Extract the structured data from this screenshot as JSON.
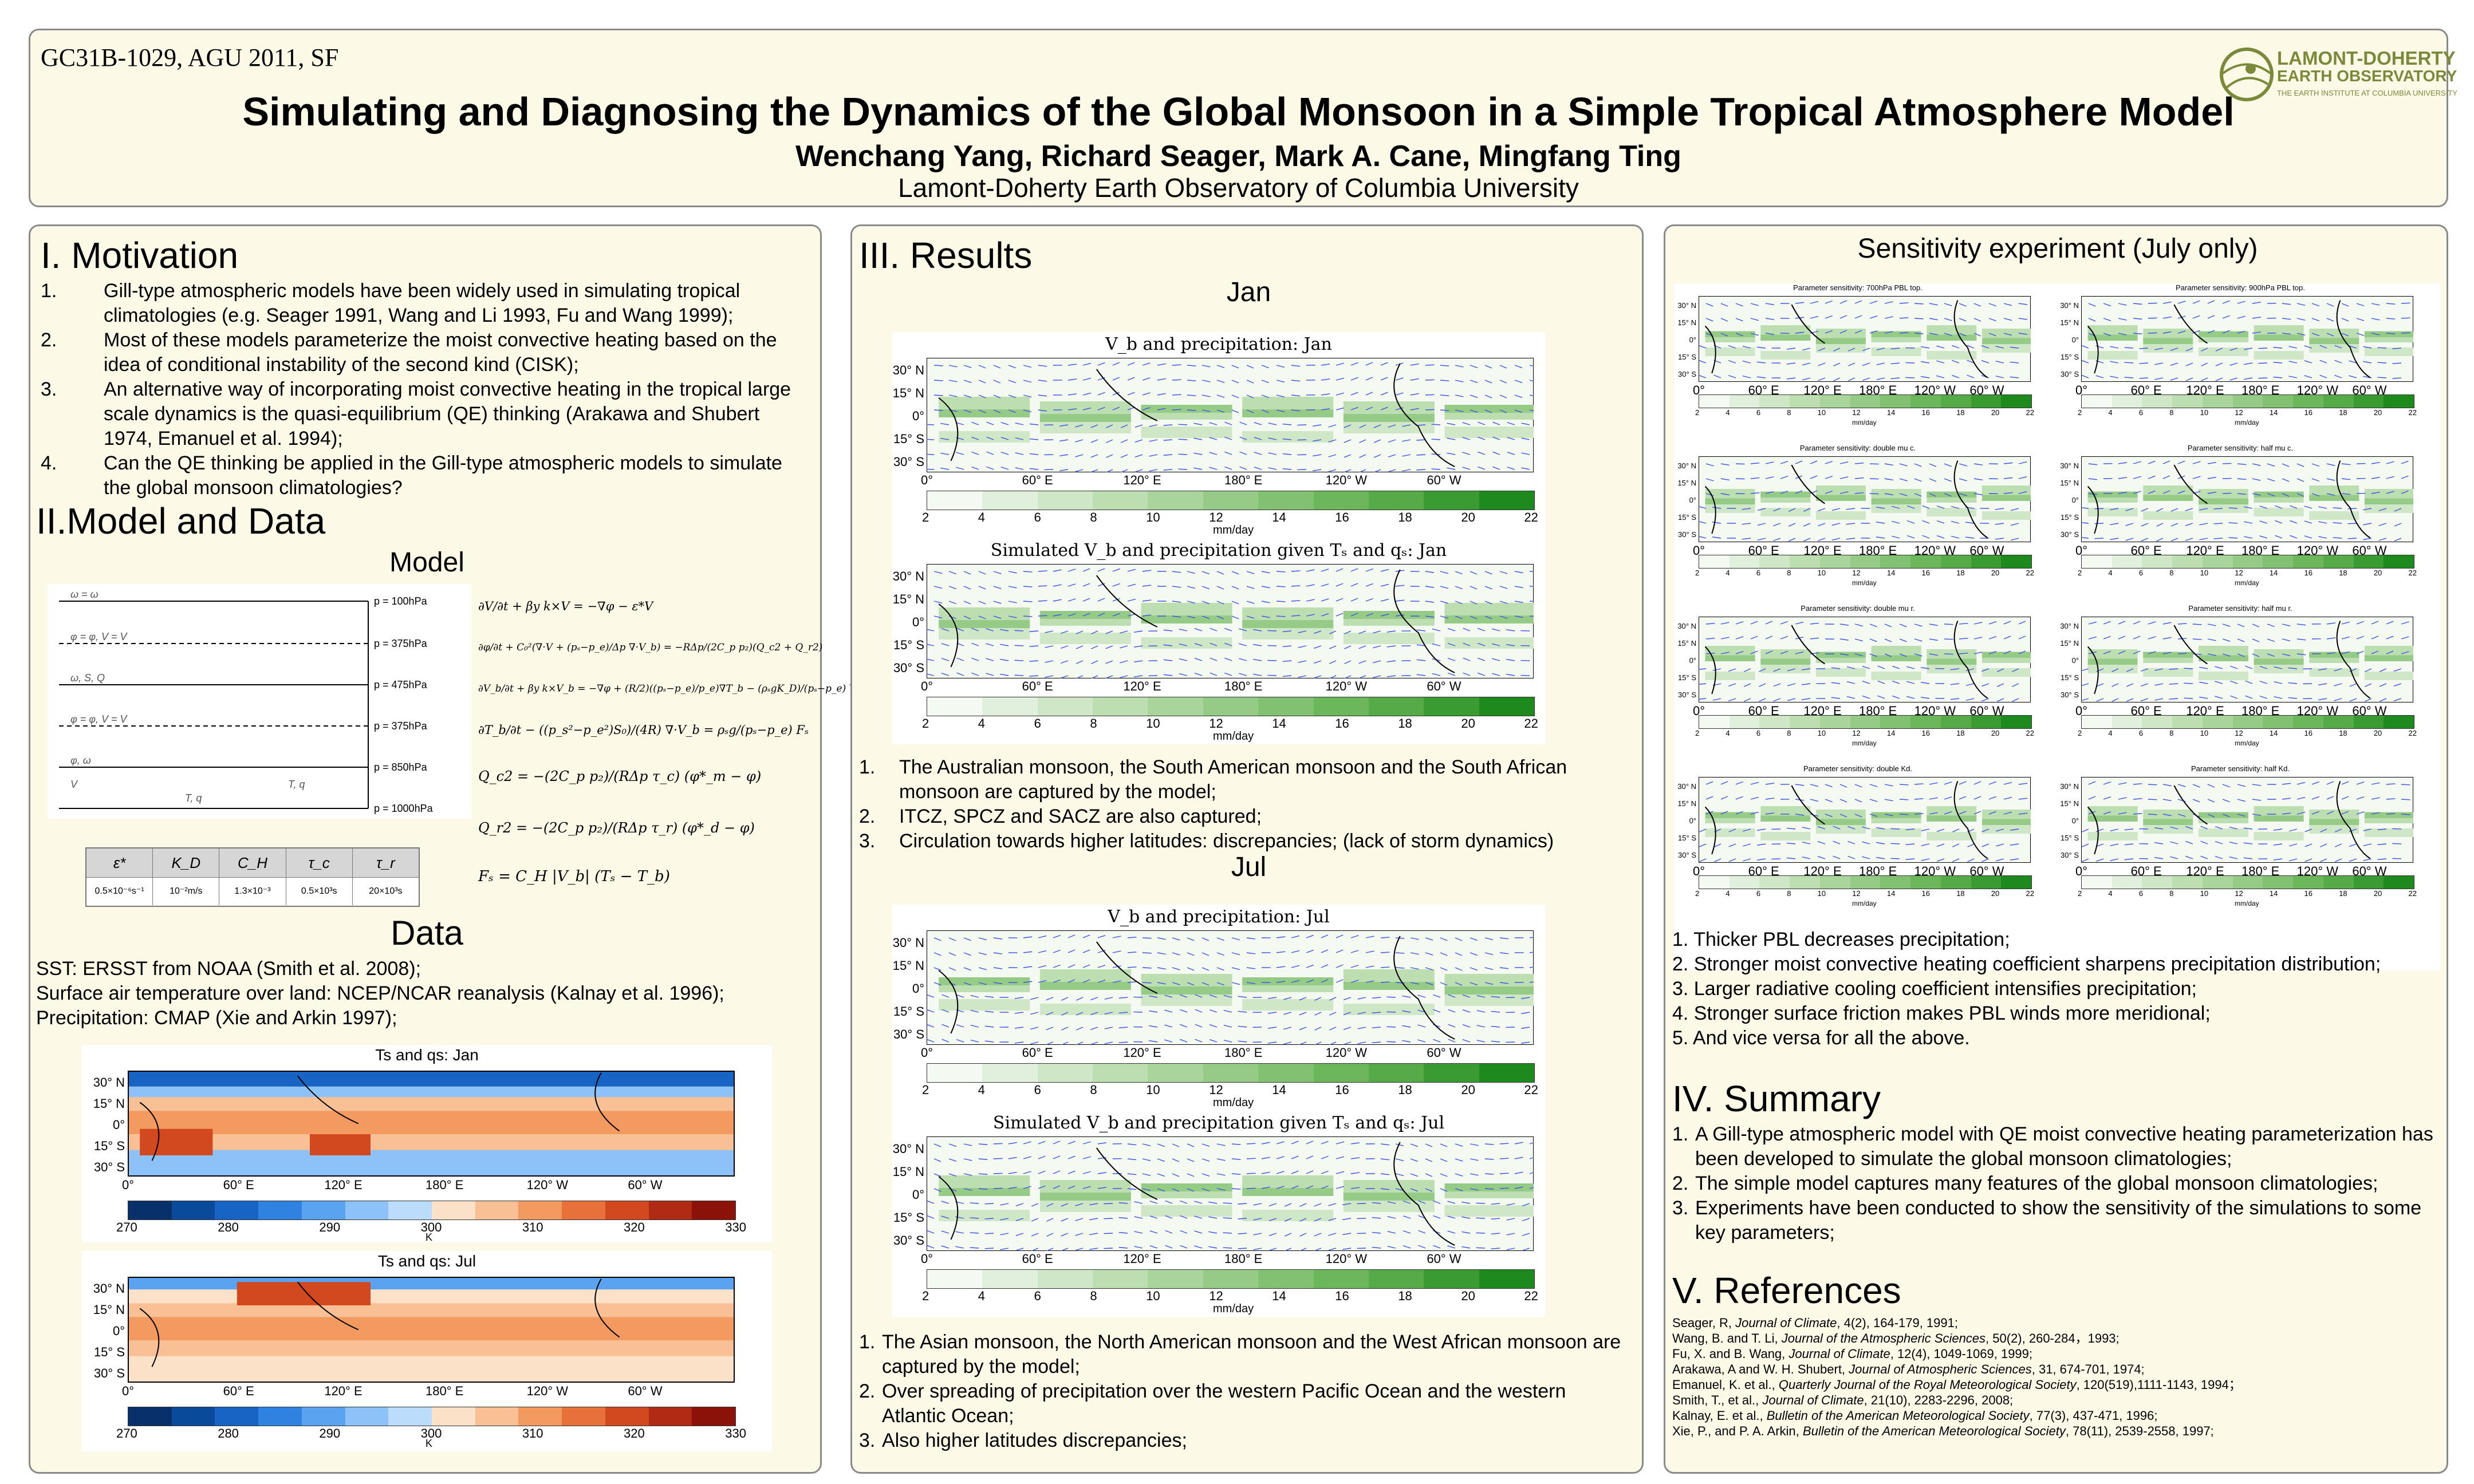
{
  "header": {
    "session": "GC31B-1029, AGU 2011, SF",
    "title": "Simulating and Diagnosing the Dynamics of the Global Monsoon in a Simple Tropical Atmosphere Model",
    "authors": "Wenchang Yang, Richard Seager, Mark A. Cane, Mingfang Ting",
    "affiliation": "Lamont-Doherty Earth Observatory of Columbia University",
    "logo_line1": "LAMONT-DOHERTY",
    "logo_line2": "EARTH OBSERVATORY",
    "logo_line3": "THE EARTH INSTITUTE AT COLUMBIA UNIVERSITY"
  },
  "motivation": {
    "heading": "I.  Motivation",
    "items": [
      {
        "num": "1.",
        "text": "Gill-type atmospheric models have been widely used in simulating tropical climatologies (e.g. Seager 1991, Wang and Li 1993, Fu and Wang 1999);"
      },
      {
        "num": "2.",
        "text": "Most of these models parameterize the moist convective heating based on the idea of conditional instability of the second kind (CISK);"
      },
      {
        "num": "3.",
        "text": "An alternative way of incorporating moist convective heating in the tropical large scale dynamics is the quasi-equilibrium (QE) thinking (Arakawa and Shubert 1974, Emanuel et al. 1994);"
      },
      {
        "num": "4.",
        "text": "Can the QE thinking be applied in the Gill-type atmospheric models to simulate the global monsoon climatologies?"
      }
    ]
  },
  "model": {
    "heading": "II.Model and Data",
    "subheading": "Model",
    "levels": [
      "p = 100hPa",
      "p = 375hPa",
      "p = 475hPa",
      "p = 375hPa",
      "p = 850hPa",
      "p = 1000hPa"
    ],
    "level_labels": [
      "ω = ω",
      "φ = φ, V = V",
      "ω, S, Q",
      "φ = φ, V = V",
      "φ, ω",
      "V",
      "T, q",
      "T, q"
    ],
    "param_headers": [
      "ε*",
      "K_D",
      "C_H",
      "τ_c",
      "τ_r"
    ],
    "param_values": [
      "0.5×10⁻⁶s⁻¹",
      "10⁻²m/s",
      "1.3×10⁻³",
      "0.5×10³s",
      "20×10³s"
    ],
    "equations": [
      "∂V/∂t + βy k×V = −∇φ − ε*V",
      "∂φ/∂t + C₀²(∇·V + (pₛ−p_e)/Δp ∇·V_b) = −RΔp/(2C_p p₂)(Q_c2 + Q_r2)",
      "∂V_b/∂t + βy k×V_b = −∇φ + (R/2)((pₛ−p_e)/p_e)∇T_b − (ρₛgK_D)/(pₛ−p_e) V_b",
      "∂T_b/∂t − ((p_s²−p_e²)S₀)/(4R) ∇·V_b = ρₛg/(pₛ−p_e) Fₛ",
      "Q_c2  =  −(2C_p p₂)/(RΔp τ_c) (φ*_m − φ)",
      "Q_r2  =  −(2C_p p₂)/(RΔp τ_r) (φ*_d − φ)",
      "Fₛ = C_H |V_b| (Tₛ − T_b)"
    ]
  },
  "data": {
    "heading": "Data",
    "lines": [
      "SST: ERSST from NOAA (Smith et al. 2008);",
      "Surface air temperature over land: NCEP/NCAR reanalysis (Kalnay et al. 1996);",
      "Precipitation: CMAP (Xie and Arkin 1997);"
    ],
    "map_titles": [
      "Ts and qs: Jan",
      "Ts and qs: Jul"
    ],
    "temp_ticks": [
      "270",
      "280",
      "290",
      "300",
      "310",
      "320",
      "330"
    ],
    "temp_unit": "K"
  },
  "map_axes": {
    "lat_labels": [
      "30° N",
      "15° N",
      "0°",
      "15° S",
      "30° S"
    ],
    "lon_labels": [
      "0°",
      "60° E",
      "120° E",
      "180° E",
      "120° W",
      "60° W"
    ],
    "precip_ticks": [
      "2",
      "4",
      "6",
      "8",
      "10",
      "12",
      "14",
      "16",
      "18",
      "20",
      "22"
    ],
    "precip_unit": "mm/day"
  },
  "results": {
    "heading": "III. Results",
    "jan_heading": "Jan",
    "jul_heading": "Jul",
    "map_titles": [
      "V_b and precipitation: Jan",
      "Simulated V_b and precipitation given Tₛ and qₛ: Jan",
      "V_b and precipitation: Jul",
      "Simulated V_b and precipitation given Tₛ and qₛ: Jul"
    ],
    "jan_points": [
      {
        "num": "1.",
        "text": "The Australian monsoon, the South American monsoon and the South African monsoon are captured by the model;"
      },
      {
        "num": "2.",
        "text": "ITCZ, SPCZ and SACZ are also captured;"
      },
      {
        "num": "3.",
        "text": "Circulation towards higher latitudes: discrepancies; (lack of storm dynamics)"
      }
    ],
    "jul_points": [
      {
        "num": "1.",
        "text": " The Asian monsoon, the North American monsoon and the West African monsoon are captured by the model;"
      },
      {
        "num": "2.",
        "text": "Over spreading of precipitation over the western Pacific Ocean and the western Atlantic Ocean;"
      },
      {
        "num": "3.",
        "text": "Also higher latitudes discrepancies;"
      }
    ]
  },
  "sensitivity": {
    "heading": "Sensitivity experiment (July only)",
    "panel_titles": [
      "Parameter sensitivity: 700hPa PBL top.",
      "Parameter sensitivity: 900hPa PBL top.",
      "Parameter sensitivity: double mu c.",
      "Parameter sensitivity: half mu c.",
      "Parameter sensitivity: double mu r.",
      "Parameter sensitivity: half mu r.",
      "Parameter sensitivity: double Kd.",
      "Parameter sensitivity: half Kd."
    ],
    "findings": [
      "1. Thicker PBL decreases precipitation;",
      "2. Stronger moist convective heating coefficient sharpens precipitation distribution;",
      "3. Larger radiative cooling coefficient intensifies precipitation;",
      "4. Stronger surface friction makes PBL winds more meridional;",
      "5. And vice versa for all the above."
    ]
  },
  "summary": {
    "heading": "IV. Summary",
    "items": [
      {
        "num": "1.",
        "text": "A Gill-type atmospheric model with QE moist convective heating parameterization has been developed to simulate the global monsoon climatologies;"
      },
      {
        "num": "2.",
        "text": "The simple model captures many features of the global monsoon climatologies;"
      },
      {
        "num": "3.",
        "text": "Experiments have been conducted to show the sensitivity of the simulations to some key parameters;"
      }
    ]
  },
  "references": {
    "heading": "V. References",
    "items": [
      {
        "pre": "Seager, R, ",
        "journal": "Journal of Climate",
        "post": ", 4(2), 164-179, 1991;"
      },
      {
        "pre": "Wang, B. and T. Li, ",
        "journal": "Journal of the Atmospheric Sciences",
        "post": ", 50(2), 260-284，1993;"
      },
      {
        "pre": "Fu, X. and B. Wang, ",
        "journal": "Journal of Climate",
        "post": ", 12(4), 1049-1069, 1999;"
      },
      {
        "pre": "Arakawa, A and W. H. Shubert, ",
        "journal": "Journal of Atmospheric Sciences",
        "post": ", 31, 674-701, 1974;"
      },
      {
        "pre": "Emanuel, K. et al., ",
        "journal": "Quarterly Journal of the Royal Meteorological Society",
        "post": ", 120(519),1111-1143, 1994；"
      },
      {
        "pre": "Smith, T., et al., ",
        "journal": "Journal of Climate",
        "post": ", 21(10), 2283-2296, 2008;"
      },
      {
        "pre": "Kalnay, E. et al., ",
        "journal": "Bulletin of the American Meteorological Society",
        "post": ", 77(3), 437-471, 1996;"
      },
      {
        "pre": "Xie, P., and P. A. Arkin, ",
        "journal": "Bulletin of the American Meteorological Society",
        "post": ", 78(11), 2539-2558, 1997;"
      }
    ]
  },
  "colors": {
    "panel_bg": "#fcf9e6",
    "border": "#8a8a8a",
    "precip_scale": [
      "#f4f9f1",
      "#e1f0dc",
      "#cfe7c6",
      "#bcdeb1",
      "#a9d49b",
      "#95cb86",
      "#81c171",
      "#6cb65c",
      "#56aa48",
      "#3b9b33",
      "#1e8a1e"
    ],
    "temp_scale": [
      "#08306b",
      "#0a4a9b",
      "#1764c4",
      "#2f82e0",
      "#5aa3f0",
      "#8cc2f7",
      "#bcdcfb",
      "#fbe1c8",
      "#f9c095",
      "#f39a60",
      "#e8703a",
      "#d2481f",
      "#b02a14",
      "#8a1208"
    ]
  }
}
